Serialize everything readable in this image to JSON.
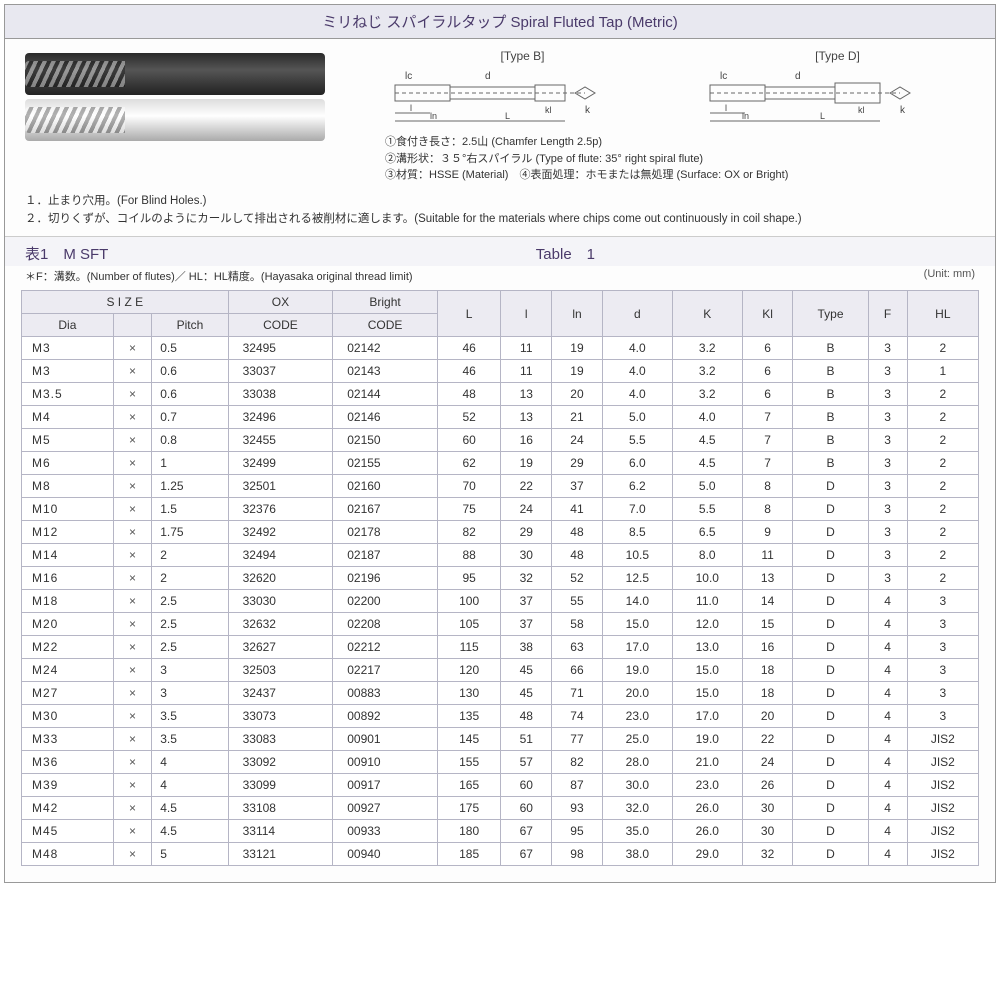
{
  "title": "ミリねじ スパイラルタップ Spiral Fluted Tap (Metric)",
  "diagrams": {
    "typeB_label": "[Type B]",
    "typeD_label": "[Type D]",
    "dim_lc": "lc",
    "dim_d": "d",
    "dim_l": "l",
    "dim_ln": "ln",
    "dim_L": "L",
    "dim_kl": "kl",
    "dim_k": "k"
  },
  "spec_notes": {
    "n1": "①食付き長さ：2.5山 (Chamfer Length 2.5p)",
    "n2": "②溝形状：３５°右スパイラル (Type of flute: 35° right spiral flute)",
    "n3": "③材質：HSSE (Material)　④表面処理：ホモまたは無処理 (Surface: OX or Bright)"
  },
  "usage": {
    "u1": "１．止まり穴用。(For Blind Holes.)",
    "u2": "２．切りくずが、コイルのようにカールして排出される被削材に適します。(Suitable for the materials where chips come out continuously in coil shape.)"
  },
  "table_header": {
    "left": "表1　M SFT",
    "right": "Table　1",
    "note_left": "＊F：溝数。(Number of flutes)／ HL：HL精度。(Hayasaka original thread limit)",
    "unit": "(Unit: mm)"
  },
  "columns": {
    "size": "S I Z E",
    "dia": "Dia",
    "pitch": "Pitch",
    "ox": "OX",
    "bright": "Bright",
    "code": "CODE",
    "L": "L",
    "l": "l",
    "ln": "ln",
    "d": "d",
    "K": "K",
    "Kl": "Kl",
    "type": "Type",
    "F": "F",
    "HL": "HL"
  },
  "rows": [
    {
      "dia": "M3",
      "pitch": "0.5",
      "ox": "32495",
      "br": "02142",
      "L": "46",
      "l": "11",
      "ln": "19",
      "d": "4.0",
      "K": "3.2",
      "Kl": "6",
      "type": "B",
      "F": "3",
      "HL": "2"
    },
    {
      "dia": "M3",
      "pitch": "0.6",
      "ox": "33037",
      "br": "02143",
      "L": "46",
      "l": "11",
      "ln": "19",
      "d": "4.0",
      "K": "3.2",
      "Kl": "6",
      "type": "B",
      "F": "3",
      "HL": "1"
    },
    {
      "dia": "M3.5",
      "pitch": "0.6",
      "ox": "33038",
      "br": "02144",
      "L": "48",
      "l": "13",
      "ln": "20",
      "d": "4.0",
      "K": "3.2",
      "Kl": "6",
      "type": "B",
      "F": "3",
      "HL": "2"
    },
    {
      "dia": "M4",
      "pitch": "0.7",
      "ox": "32496",
      "br": "02146",
      "L": "52",
      "l": "13",
      "ln": "21",
      "d": "5.0",
      "K": "4.0",
      "Kl": "7",
      "type": "B",
      "F": "3",
      "HL": "2"
    },
    {
      "dia": "M5",
      "pitch": "0.8",
      "ox": "32455",
      "br": "02150",
      "L": "60",
      "l": "16",
      "ln": "24",
      "d": "5.5",
      "K": "4.5",
      "Kl": "7",
      "type": "B",
      "F": "3",
      "HL": "2"
    },
    {
      "dia": "M6",
      "pitch": "1",
      "ox": "32499",
      "br": "02155",
      "L": "62",
      "l": "19",
      "ln": "29",
      "d": "6.0",
      "K": "4.5",
      "Kl": "7",
      "type": "B",
      "F": "3",
      "HL": "2"
    },
    {
      "dia": "M8",
      "pitch": "1.25",
      "ox": "32501",
      "br": "02160",
      "L": "70",
      "l": "22",
      "ln": "37",
      "d": "6.2",
      "K": "5.0",
      "Kl": "8",
      "type": "D",
      "F": "3",
      "HL": "2"
    },
    {
      "dia": "M10",
      "pitch": "1.5",
      "ox": "32376",
      "br": "02167",
      "L": "75",
      "l": "24",
      "ln": "41",
      "d": "7.0",
      "K": "5.5",
      "Kl": "8",
      "type": "D",
      "F": "3",
      "HL": "2"
    },
    {
      "dia": "M12",
      "pitch": "1.75",
      "ox": "32492",
      "br": "02178",
      "L": "82",
      "l": "29",
      "ln": "48",
      "d": "8.5",
      "K": "6.5",
      "Kl": "9",
      "type": "D",
      "F": "3",
      "HL": "2"
    },
    {
      "dia": "M14",
      "pitch": "2",
      "ox": "32494",
      "br": "02187",
      "L": "88",
      "l": "30",
      "ln": "48",
      "d": "10.5",
      "K": "8.0",
      "Kl": "11",
      "type": "D",
      "F": "3",
      "HL": "2"
    },
    {
      "dia": "M16",
      "pitch": "2",
      "ox": "32620",
      "br": "02196",
      "L": "95",
      "l": "32",
      "ln": "52",
      "d": "12.5",
      "K": "10.0",
      "Kl": "13",
      "type": "D",
      "F": "3",
      "HL": "2"
    },
    {
      "dia": "M18",
      "pitch": "2.5",
      "ox": "33030",
      "br": "02200",
      "L": "100",
      "l": "37",
      "ln": "55",
      "d": "14.0",
      "K": "11.0",
      "Kl": "14",
      "type": "D",
      "F": "4",
      "HL": "3"
    },
    {
      "dia": "M20",
      "pitch": "2.5",
      "ox": "32632",
      "br": "02208",
      "L": "105",
      "l": "37",
      "ln": "58",
      "d": "15.0",
      "K": "12.0",
      "Kl": "15",
      "type": "D",
      "F": "4",
      "HL": "3"
    },
    {
      "dia": "M22",
      "pitch": "2.5",
      "ox": "32627",
      "br": "02212",
      "L": "115",
      "l": "38",
      "ln": "63",
      "d": "17.0",
      "K": "13.0",
      "Kl": "16",
      "type": "D",
      "F": "4",
      "HL": "3"
    },
    {
      "dia": "M24",
      "pitch": "3",
      "ox": "32503",
      "br": "02217",
      "L": "120",
      "l": "45",
      "ln": "66",
      "d": "19.0",
      "K": "15.0",
      "Kl": "18",
      "type": "D",
      "F": "4",
      "HL": "3"
    },
    {
      "dia": "M27",
      "pitch": "3",
      "ox": "32437",
      "br": "00883",
      "L": "130",
      "l": "45",
      "ln": "71",
      "d": "20.0",
      "K": "15.0",
      "Kl": "18",
      "type": "D",
      "F": "4",
      "HL": "3"
    },
    {
      "dia": "M30",
      "pitch": "3.5",
      "ox": "33073",
      "br": "00892",
      "L": "135",
      "l": "48",
      "ln": "74",
      "d": "23.0",
      "K": "17.0",
      "Kl": "20",
      "type": "D",
      "F": "4",
      "HL": "3"
    },
    {
      "dia": "M33",
      "pitch": "3.5",
      "ox": "33083",
      "br": "00901",
      "L": "145",
      "l": "51",
      "ln": "77",
      "d": "25.0",
      "K": "19.0",
      "Kl": "22",
      "type": "D",
      "F": "4",
      "HL": "JIS2"
    },
    {
      "dia": "M36",
      "pitch": "4",
      "ox": "33092",
      "br": "00910",
      "L": "155",
      "l": "57",
      "ln": "82",
      "d": "28.0",
      "K": "21.0",
      "Kl": "24",
      "type": "D",
      "F": "4",
      "HL": "JIS2"
    },
    {
      "dia": "M39",
      "pitch": "4",
      "ox": "33099",
      "br": "00917",
      "L": "165",
      "l": "60",
      "ln": "87",
      "d": "30.0",
      "K": "23.0",
      "Kl": "26",
      "type": "D",
      "F": "4",
      "HL": "JIS2"
    },
    {
      "dia": "M42",
      "pitch": "4.5",
      "ox": "33108",
      "br": "00927",
      "L": "175",
      "l": "60",
      "ln": "93",
      "d": "32.0",
      "K": "26.0",
      "Kl": "30",
      "type": "D",
      "F": "4",
      "HL": "JIS2"
    },
    {
      "dia": "M45",
      "pitch": "4.5",
      "ox": "33114",
      "br": "00933",
      "L": "180",
      "l": "67",
      "ln": "95",
      "d": "35.0",
      "K": "26.0",
      "Kl": "30",
      "type": "D",
      "F": "4",
      "HL": "JIS2"
    },
    {
      "dia": "M48",
      "pitch": "5",
      "ox": "33121",
      "br": "00940",
      "L": "185",
      "l": "67",
      "ln": "98",
      "d": "38.0",
      "K": "29.0",
      "Kl": "32",
      "type": "D",
      "F": "4",
      "HL": "JIS2"
    }
  ]
}
